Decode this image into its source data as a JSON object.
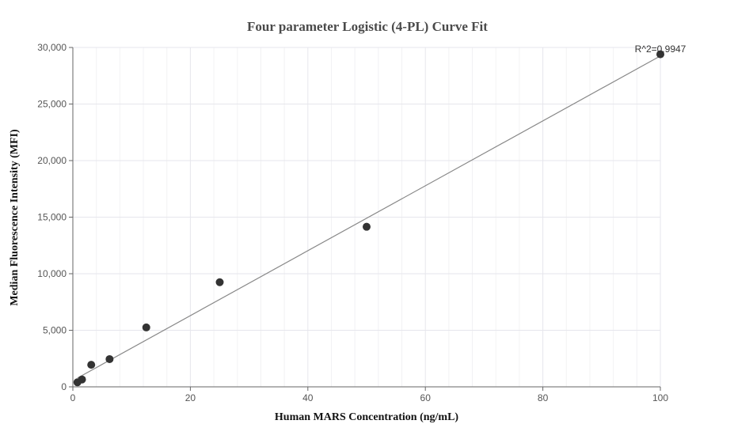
{
  "chart_data": {
    "type": "scatter",
    "title": "Four parameter Logistic (4-PL) Curve Fit",
    "xlabel": "Human MARS Concentration (ng/mL)",
    "ylabel": "Median Fluorescence Intensity (MFI)",
    "xlim": [
      0,
      100
    ],
    "ylim": [
      0,
      30000
    ],
    "x_ticks": [
      0,
      20,
      40,
      60,
      80,
      100
    ],
    "x_tick_labels": [
      "0",
      "20",
      "40",
      "60",
      "80",
      "100"
    ],
    "y_ticks": [
      0,
      5000,
      10000,
      15000,
      20000,
      25000,
      30000
    ],
    "y_tick_labels": [
      "0",
      "5,000",
      "10,000",
      "15,000",
      "20,000",
      "25,000",
      "30,000"
    ],
    "grid": true,
    "annotation": "R^2=0.9947",
    "points": {
      "x": [
        0.78,
        1.56,
        3.13,
        6.25,
        12.5,
        25,
        50,
        100
      ],
      "y": [
        400,
        650,
        1950,
        2450,
        5250,
        9250,
        14150,
        29400
      ]
    },
    "fit_line": {
      "x": [
        0.78,
        100
      ],
      "y": [
        780,
        29250
      ]
    },
    "colors": {
      "points": "#333333",
      "fit_line": "#888888",
      "grid": "#e6e6e6"
    }
  }
}
